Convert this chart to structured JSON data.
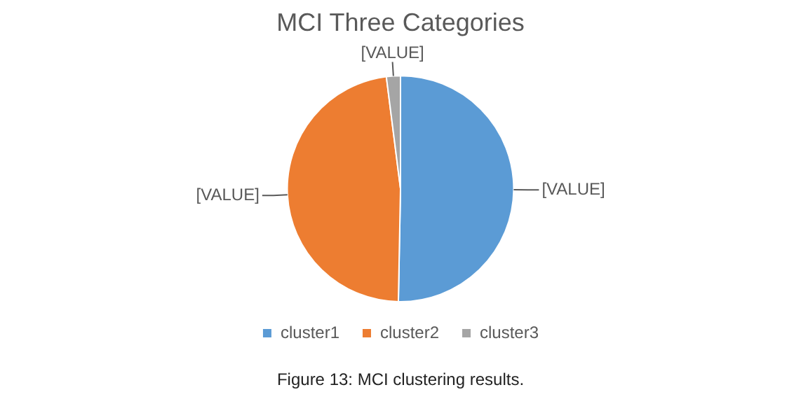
{
  "chart_data": {
    "type": "pie",
    "title": "MCI Three Categories",
    "categories": [
      "cluster1",
      "cluster2",
      "cluster3"
    ],
    "values": [
      50.3,
      47.7,
      2.0
    ],
    "colors": [
      "#5b9bd5",
      "#ed7d31",
      "#a5a5a5"
    ],
    "value_labels": [
      "[VALUE]",
      "[VALUE]",
      "[VALUE]"
    ],
    "legend": "bottom",
    "annotations": [
      "Figure 13: MCI clustering results."
    ]
  }
}
